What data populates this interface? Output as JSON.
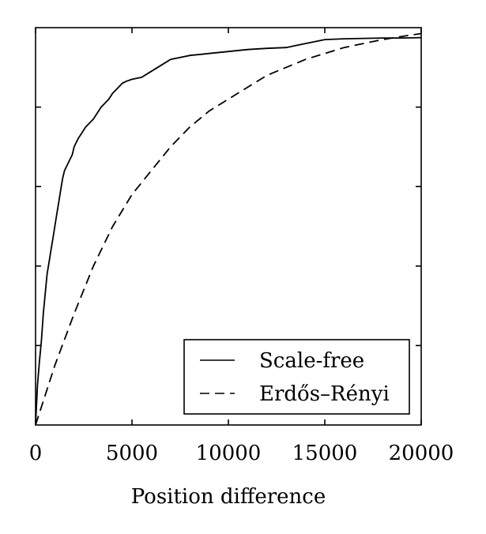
{
  "chart_data": {
    "type": "line",
    "title": "",
    "xlabel": "Position difference",
    "ylabel": "",
    "xlim": [
      0,
      20000
    ],
    "ylim": [
      0,
      1
    ],
    "x_ticks": [
      0,
      5000,
      10000,
      15000,
      20000
    ],
    "x_tick_labels": [
      "0",
      "5000",
      "10000",
      "15000",
      "20000"
    ],
    "y_ticks": [
      0.2,
      0.4,
      0.6,
      0.8
    ],
    "grid": false,
    "legend_position": "bottom-right",
    "series": [
      {
        "name": "Scale-free",
        "style": "solid",
        "x": [
          0,
          100,
          200,
          300,
          400,
          500,
          600,
          700,
          800,
          900,
          1000,
          1100,
          1200,
          1300,
          1400,
          1500,
          1600,
          1700,
          1800,
          1900,
          2000,
          2200,
          2400,
          2600,
          2800,
          3000,
          3200,
          3400,
          3600,
          3800,
          4000,
          4200,
          4400,
          4500,
          4700,
          5000,
          5500,
          6000,
          6500,
          7000,
          7500,
          8000,
          9000,
          10000,
          11000,
          12000,
          13000,
          13500,
          14000,
          14500,
          15000,
          16000,
          17000,
          18000,
          19000,
          20000
        ],
        "y": [
          0,
          0.1,
          0.16,
          0.21,
          0.28,
          0.33,
          0.38,
          0.41,
          0.44,
          0.47,
          0.5,
          0.53,
          0.56,
          0.59,
          0.62,
          0.64,
          0.65,
          0.66,
          0.67,
          0.68,
          0.7,
          0.72,
          0.735,
          0.75,
          0.76,
          0.77,
          0.785,
          0.8,
          0.81,
          0.82,
          0.835,
          0.845,
          0.855,
          0.86,
          0.865,
          0.87,
          0.875,
          0.89,
          0.905,
          0.92,
          0.925,
          0.93,
          0.935,
          0.94,
          0.945,
          0.948,
          0.95,
          0.955,
          0.96,
          0.965,
          0.97,
          0.972,
          0.973,
          0.974,
          0.974,
          0.975
        ],
        "color": "#000000"
      },
      {
        "name": "Erdős–Rényi",
        "style": "dashed",
        "x": [
          0,
          1000,
          2000,
          3000,
          4000,
          5000,
          6000,
          7000,
          8000,
          9000,
          10000,
          11000,
          12000,
          13000,
          14000,
          15000,
          16000,
          17000,
          18000,
          19000,
          20000
        ],
        "y": [
          0,
          0.15,
          0.28,
          0.4,
          0.5,
          0.58,
          0.64,
          0.7,
          0.75,
          0.79,
          0.82,
          0.85,
          0.88,
          0.9,
          0.92,
          0.935,
          0.95,
          0.96,
          0.97,
          0.978,
          0.985
        ],
        "color": "#000000"
      }
    ]
  }
}
